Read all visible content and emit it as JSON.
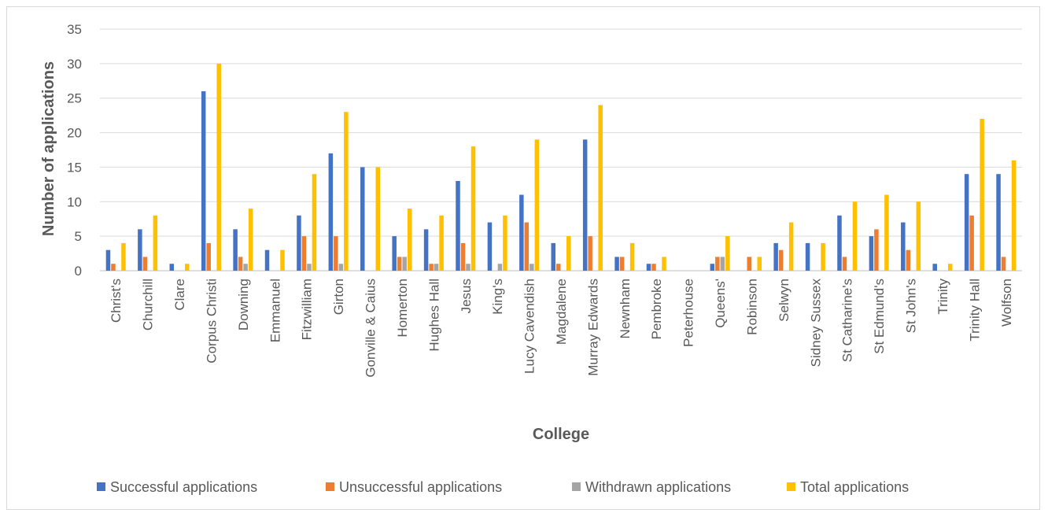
{
  "chart_data": {
    "type": "bar",
    "title": "",
    "xlabel": "College",
    "ylabel": "Number of applications",
    "ylim": [
      0,
      35
    ],
    "yticks": [
      0,
      5,
      10,
      15,
      20,
      25,
      30,
      35
    ],
    "grid": true,
    "legend_position": "bottom",
    "categories": [
      "Christ's",
      "Churchill",
      "Clare",
      "Corpus Christi",
      "Downing",
      "Emmanuel",
      "Fitzwilliam",
      "Girton",
      "Gonville & Caius",
      "Homerton",
      "Hughes Hall",
      "Jesus",
      "King's",
      "Lucy Cavendish",
      "Magdalene",
      "Murray Edwards",
      "Newnham",
      "Pembroke",
      "Peterhouse",
      "Queens'",
      "Robinson",
      "Selwyn",
      "Sidney Sussex",
      "St Catharine's",
      "St Edmund's",
      "St John's",
      "Trinity",
      "Trinity Hall",
      "Wolfson"
    ],
    "series": [
      {
        "name": "Successful applications",
        "color": "#4472c4",
        "values": [
          3,
          6,
          1,
          26,
          6,
          3,
          8,
          17,
          15,
          5,
          6,
          13,
          7,
          11,
          4,
          19,
          2,
          1,
          0,
          1,
          0,
          4,
          4,
          8,
          5,
          7,
          1,
          14,
          14
        ]
      },
      {
        "name": "Unsuccessful applications",
        "color": "#ed7d31",
        "values": [
          1,
          2,
          0,
          4,
          2,
          0,
          5,
          5,
          0,
          2,
          1,
          4,
          0,
          7,
          1,
          5,
          2,
          1,
          0,
          2,
          2,
          3,
          0,
          2,
          6,
          3,
          0,
          8,
          2
        ]
      },
      {
        "name": "Withdrawn applications",
        "color": "#a5a5a5",
        "values": [
          0,
          0,
          0,
          0,
          1,
          0,
          1,
          1,
          0,
          2,
          1,
          1,
          1,
          1,
          0,
          0,
          0,
          0,
          0,
          2,
          0,
          0,
          0,
          0,
          0,
          0,
          0,
          0,
          0
        ]
      },
      {
        "name": "Total applications",
        "color": "#ffc000",
        "values": [
          4,
          8,
          1,
          30,
          9,
          3,
          14,
          23,
          15,
          9,
          8,
          18,
          8,
          19,
          5,
          24,
          4,
          2,
          0,
          5,
          2,
          7,
          4,
          10,
          11,
          10,
          1,
          22,
          16
        ]
      }
    ]
  }
}
